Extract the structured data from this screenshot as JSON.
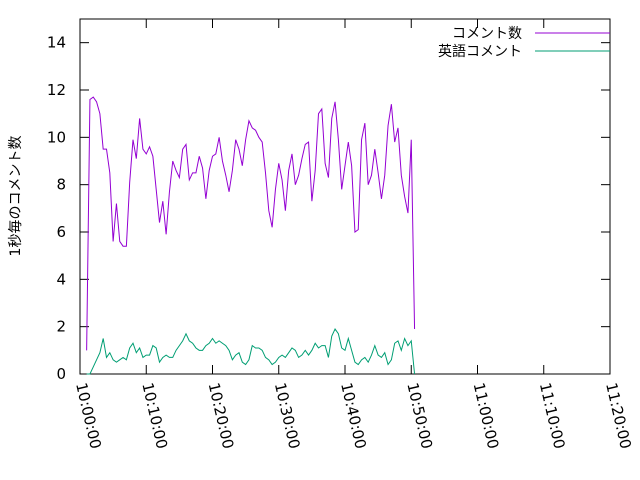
{
  "chart_data": {
    "type": "line",
    "title": "",
    "xlabel": "",
    "ylabel": "1秒毎のコメント数",
    "xlim": [
      "10:00:00",
      "11:20:00"
    ],
    "ylim": [
      0,
      15
    ],
    "x_ticks": [
      "10:00:00",
      "10:10:00",
      "10:20:00",
      "10:30:00",
      "10:40:00",
      "10:50:00",
      "11:00:00",
      "11:10:00",
      "11:20:00"
    ],
    "y_ticks": [
      "0",
      "2",
      "4",
      "6",
      "8",
      "10",
      "12",
      "14"
    ],
    "grid": false,
    "legend": "top-right",
    "x_start": "10:01:00",
    "x_step_seconds": 30,
    "series": [
      {
        "name": "コメント数",
        "color": "#9400d3",
        "values": [
          1.0,
          11.6,
          11.7,
          11.5,
          11.0,
          9.5,
          9.5,
          8.5,
          5.6,
          7.2,
          5.6,
          5.4,
          5.4,
          8.1,
          9.9,
          9.1,
          10.8,
          9.5,
          9.3,
          9.6,
          9.2,
          7.8,
          6.4,
          7.3,
          5.9,
          7.7,
          9.0,
          8.6,
          8.3,
          9.5,
          9.7,
          8.2,
          8.5,
          8.5,
          9.2,
          8.7,
          7.4,
          8.6,
          9.2,
          9.3,
          10.0,
          9.0,
          8.4,
          7.7,
          8.6,
          9.9,
          9.5,
          8.8,
          9.9,
          10.7,
          10.4,
          10.3,
          10.0,
          9.8,
          8.5,
          6.9,
          6.2,
          7.8,
          8.9,
          8.2,
          6.9,
          8.6,
          9.3,
          8.0,
          8.4,
          9.1,
          9.7,
          9.8,
          7.3,
          8.6,
          11.0,
          11.2,
          8.9,
          8.3,
          10.8,
          11.5,
          9.9,
          7.8,
          8.8,
          9.8,
          8.8,
          6.0,
          6.1,
          9.9,
          10.6,
          8.0,
          8.4,
          9.5,
          8.5,
          7.4,
          8.4,
          10.5,
          11.4,
          9.8,
          10.4,
          8.4,
          7.5,
          6.8,
          9.9,
          1.9
        ]
      },
      {
        "name": "英語コメント",
        "color": "#009e73",
        "values": [
          0.0,
          0.0,
          0.3,
          0.6,
          0.9,
          1.5,
          0.7,
          0.9,
          0.6,
          0.5,
          0.6,
          0.7,
          0.6,
          1.1,
          1.3,
          0.9,
          1.1,
          0.7,
          0.8,
          0.8,
          1.2,
          1.1,
          0.5,
          0.7,
          0.8,
          0.7,
          0.7,
          1.0,
          1.2,
          1.4,
          1.7,
          1.4,
          1.3,
          1.1,
          1.0,
          1.0,
          1.2,
          1.3,
          1.5,
          1.3,
          1.4,
          1.3,
          1.2,
          1.0,
          0.6,
          0.8,
          0.9,
          0.5,
          0.4,
          0.6,
          1.2,
          1.1,
          1.1,
          1.0,
          0.7,
          0.6,
          0.4,
          0.5,
          0.7,
          0.8,
          0.7,
          0.9,
          1.1,
          1.0,
          0.7,
          0.8,
          1.0,
          0.8,
          1.0,
          1.3,
          1.1,
          1.2,
          1.2,
          0.7,
          1.6,
          1.9,
          1.7,
          1.1,
          1.0,
          1.5,
          1.0,
          0.5,
          0.4,
          0.6,
          0.7,
          0.5,
          0.8,
          1.2,
          0.8,
          0.7,
          0.9,
          0.4,
          0.6,
          1.3,
          1.4,
          1.0,
          1.5,
          1.2,
          1.4,
          0.0
        ]
      }
    ]
  }
}
